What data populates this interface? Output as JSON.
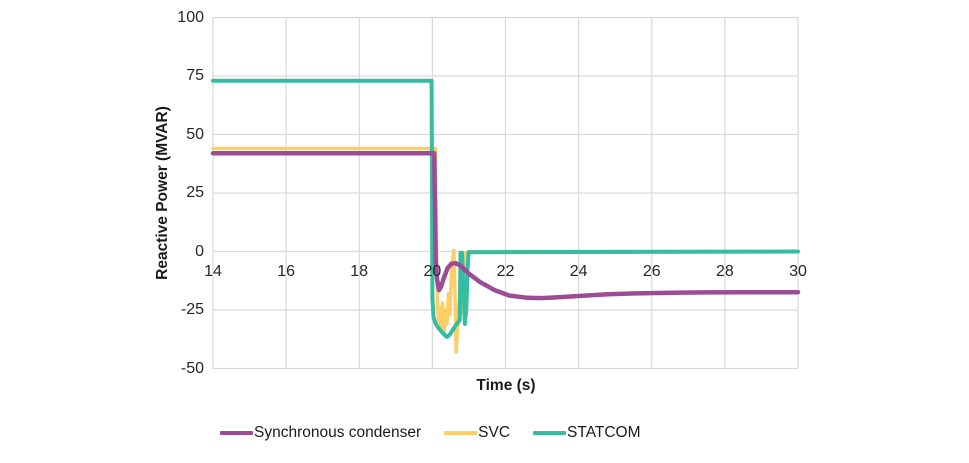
{
  "chart_data": {
    "type": "line",
    "title": "",
    "xlabel": "Time (s)",
    "ylabel": "Reactive Power  (MVAR)",
    "x_range": [
      14,
      30
    ],
    "y_range": [
      -50,
      100
    ],
    "x_ticks": [
      "14",
      "16",
      "18",
      "20",
      "22",
      "24",
      "26",
      "28",
      "30"
    ],
    "y_ticks": [
      "100",
      "75",
      "50",
      "25",
      "0",
      "-25",
      "-50"
    ],
    "grid": true,
    "gridline_color": "#d9d9d9",
    "background_color": "#ffffff",
    "legend_position": "bottom",
    "series": [
      {
        "name": "Synchronous condenser",
        "color": "#9c4c96",
        "width": 4.5,
        "points": [
          [
            14,
            42
          ],
          [
            20.05,
            42
          ],
          [
            20.09,
            -3
          ],
          [
            20.13,
            -12
          ],
          [
            20.18,
            -16.5
          ],
          [
            20.24,
            -15
          ],
          [
            20.32,
            -11
          ],
          [
            20.42,
            -7
          ],
          [
            20.52,
            -5.2
          ],
          [
            20.64,
            -5
          ],
          [
            20.78,
            -6.2
          ],
          [
            21.0,
            -9.5
          ],
          [
            21.3,
            -13
          ],
          [
            21.7,
            -16.5
          ],
          [
            22.1,
            -18.8
          ],
          [
            22.6,
            -19.8
          ],
          [
            23.0,
            -19.9
          ],
          [
            23.5,
            -19.5
          ],
          [
            24.0,
            -19.0
          ],
          [
            24.8,
            -18.3
          ],
          [
            25.6,
            -17.9
          ],
          [
            26.5,
            -17.6
          ],
          [
            27.5,
            -17.5
          ],
          [
            28.5,
            -17.4
          ],
          [
            30,
            -17.4
          ]
        ]
      },
      {
        "name": "SVC",
        "color": "#fbce67",
        "width": 3.5,
        "points": [
          [
            14,
            44
          ],
          [
            20.08,
            44
          ],
          [
            20.11,
            5
          ],
          [
            20.14,
            -22
          ],
          [
            20.17,
            -30
          ],
          [
            20.2,
            -24
          ],
          [
            20.24,
            -33
          ],
          [
            20.28,
            -22
          ],
          [
            20.32,
            -35
          ],
          [
            20.36,
            -25
          ],
          [
            20.4,
            -31
          ],
          [
            20.44,
            -18
          ],
          [
            20.48,
            -27
          ],
          [
            20.52,
            -10
          ],
          [
            20.56,
            -3
          ],
          [
            20.59,
            0.5
          ],
          [
            20.62,
            -18
          ],
          [
            20.65,
            -43
          ],
          [
            20.69,
            -32
          ],
          [
            20.74,
            -20
          ],
          [
            20.8,
            -26
          ],
          [
            20.84,
            -12
          ],
          [
            20.88,
            -3
          ],
          [
            20.92,
            -0.5
          ],
          [
            21.0,
            0
          ],
          [
            30,
            0
          ]
        ]
      },
      {
        "name": "STATCOM",
        "color": "#36bda1",
        "width": 4,
        "points": [
          [
            14,
            73
          ],
          [
            19.98,
            73
          ],
          [
            20.0,
            -20
          ],
          [
            20.03,
            -28
          ],
          [
            20.08,
            -30.5
          ],
          [
            20.16,
            -32.5
          ],
          [
            20.24,
            -34
          ],
          [
            20.32,
            -35.5
          ],
          [
            20.4,
            -36.5
          ],
          [
            20.48,
            -35.5
          ],
          [
            20.56,
            -33.5
          ],
          [
            20.64,
            -31.5
          ],
          [
            20.72,
            -30
          ],
          [
            20.75,
            -29
          ],
          [
            20.77,
            -0.5
          ],
          [
            20.81,
            -0.5
          ],
          [
            20.85,
            -15
          ],
          [
            20.89,
            -31
          ],
          [
            20.93,
            -24
          ],
          [
            20.96,
            -8
          ],
          [
            20.99,
            -0.3
          ],
          [
            30,
            0
          ]
        ]
      }
    ],
    "draw_order": [
      1,
      2,
      0
    ]
  }
}
